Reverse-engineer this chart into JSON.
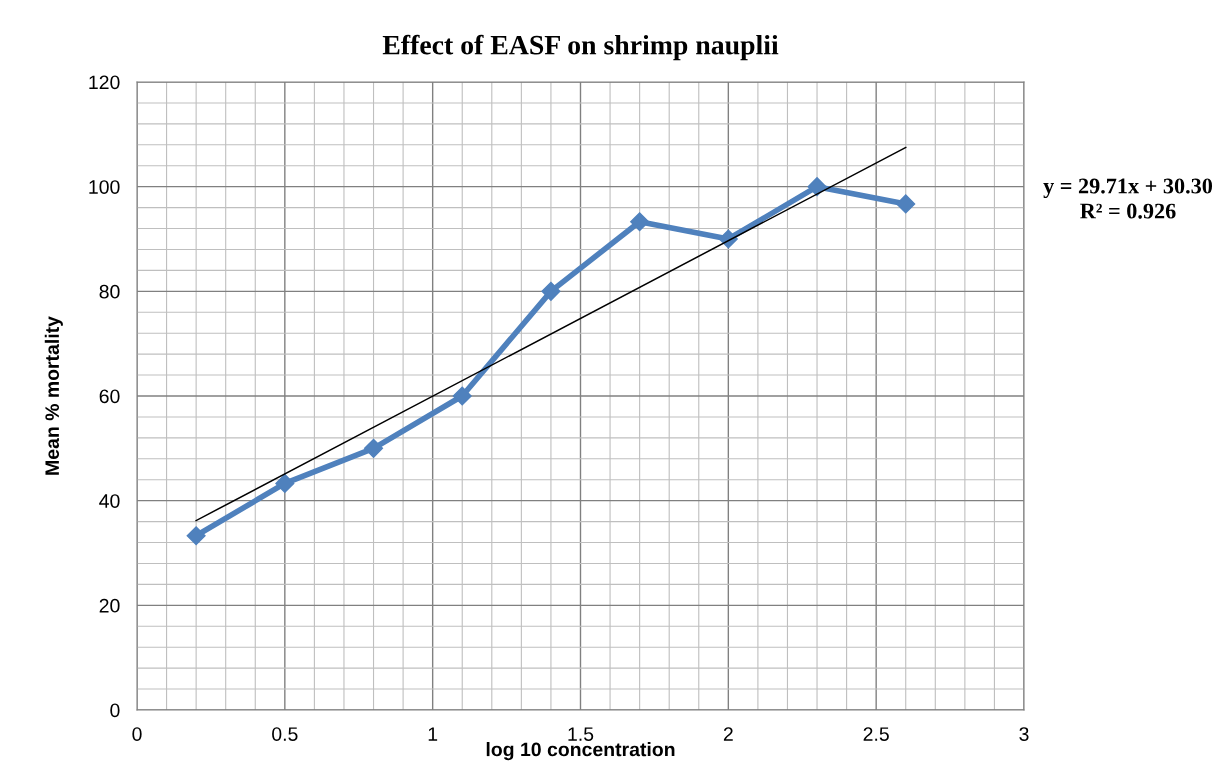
{
  "chart_data": {
    "type": "line",
    "title": "Effect of EASF on shrimp nauplii",
    "xlabel": "log 10 concentration",
    "ylabel": "Mean % mortality",
    "x": [
      0.2,
      0.5,
      0.8,
      1.1,
      1.4,
      1.7,
      2.0,
      2.3,
      2.6
    ],
    "series": [
      {
        "color": "#4f81bd",
        "marker": "diamond",
        "values": [
          33.3,
          43.3,
          50,
          60,
          80,
          93.3,
          90,
          100,
          96.7
        ]
      },
      {
        "color": "#000000",
        "marker": "none",
        "x": [
          0.2,
          2.6
        ],
        "values": [
          36.2,
          107.5
        ]
      }
    ],
    "annotations": [
      "y = 29.71x + 30.30",
      "R² = 0.926"
    ],
    "xlim": [
      0,
      3
    ],
    "xticks": [
      0,
      0.5,
      1,
      1.5,
      2,
      2.5,
      3
    ],
    "ylim": [
      0,
      120
    ],
    "yticks": [
      0,
      20,
      40,
      60,
      80,
      100,
      120
    ],
    "grid": true,
    "legend": false
  }
}
